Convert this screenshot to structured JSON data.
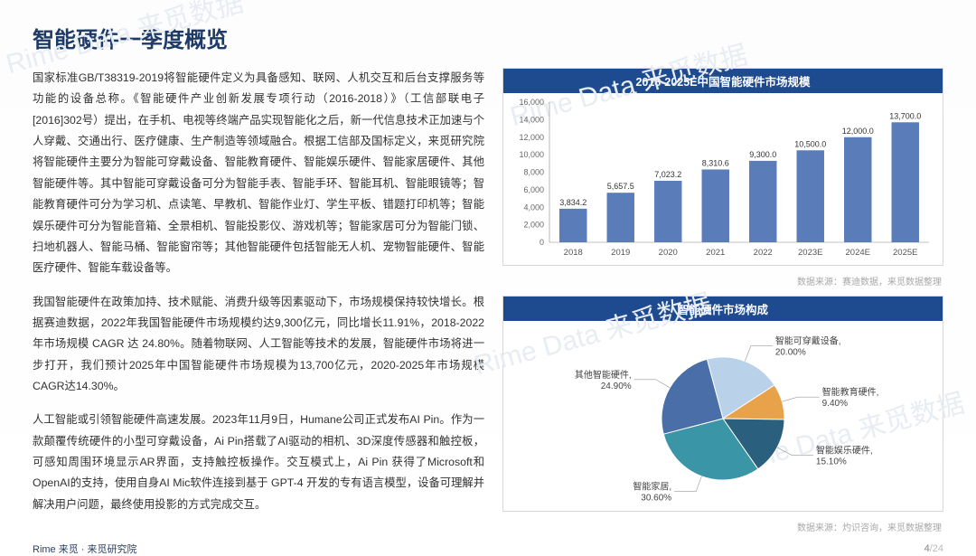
{
  "title": "智能硬件一季度概览",
  "paragraphs": {
    "p1": "国家标准GB/T38319-2019将智能硬件定义为具备感知、联网、人机交互和后台支撑服务等功能的设备总称。《智能硬件产业创新发展专项行动（2016-2018）》（工信部联电子[2016]302号）提出，在手机、电视等终端产品实现智能化之后，新一代信息技术正加速与个人穿戴、交通出行、医疗健康、生产制造等领域融合。根据工信部及国标定义，来觅研究院将智能硬件主要分为智能可穿戴设备、智能教育硬件、智能娱乐硬件、智能家居硬件、其他智能硬件等。其中智能可穿戴设备可分为智能手表、智能手环、智能耳机、智能眼镜等；智能教育硬件可分为学习机、点读笔、早教机、智能作业灯、学生平板、错题打印机等；智能娱乐硬件可分为智能音箱、全景相机、智能投影仪、游戏机等；智能家居可分为智能门锁、扫地机器人、智能马桶、智能窗帘等；其他智能硬件包括智能无人机、宠物智能硬件、智能医疗硬件、智能车载设备等。",
    "p2": "我国智能硬件在政策加持、技术赋能、消费升级等因素驱动下，市场规模保持较快增长。根据赛迪数据，2022年我国智能硬件市场规模约达9,300亿元，同比增长11.91%，2018-2022年市场规模 CAGR 达 24.80%。随着物联网、人工智能等技术的发展，智能硬件市场将进一步打开，我们预计2025年中国智能硬件市场规模为13,700亿元，2020-2025年市场规模CAGR达14.30%。",
    "p3": "人工智能或引领智能硬件高速发展。2023年11月9日，Humane公司正式发布AI Pin。作为一款颠覆传统硬件的小型可穿戴设备，Ai Pin搭载了AI驱动的相机、3D深度传感器和触控板，可感知周围环境显示AR界面，支持触控板操作。交互模式上，Ai Pin 获得了Microsoft和OpenAI的支持，使用自身AI Mic软件连接到基于 GPT-4 开发的专有语言模型，设备可理解并解决用户问题，最终使用投影的方式完成交互。"
  },
  "bar_chart": {
    "title": "2018-2025E中国智能硬件市场规模",
    "categories": [
      "2018",
      "2019",
      "2020",
      "2021",
      "2022",
      "2023E",
      "2024E",
      "2025E"
    ],
    "values": [
      3834.2,
      5657.5,
      7023.2,
      8310.6,
      9300.0,
      10500.0,
      12000.0,
      13700.0
    ],
    "value_labels": [
      "3,834.2",
      "5,657.5",
      "7,023.2",
      "8,310.6",
      "9,300.0",
      "10,500.0",
      "12,000.0",
      "13,700.0"
    ],
    "y_ticks": [
      0,
      2000,
      4000,
      6000,
      8000,
      10000,
      12000,
      14000,
      16000
    ],
    "y_tick_labels": [
      "0",
      "2,000",
      "4,000",
      "6,000",
      "8,000",
      "10,000",
      "12,000",
      "14,000",
      "16,000"
    ],
    "bar_color": "#5a7cb8",
    "ymax": 16000,
    "source": "数据来源：赛迪数据，来觅数据整理"
  },
  "pie_chart": {
    "title": "智能硬件市场构成",
    "slices": [
      {
        "label": "智能可穿戴设备,",
        "pct": "20.00%",
        "value": 20.0,
        "color": "#b9d2ea"
      },
      {
        "label": "智能教育硬件,",
        "pct": "9.40%",
        "value": 9.4,
        "color": "#e8a34a"
      },
      {
        "label": "智能娱乐硬件,",
        "pct": "15.10%",
        "value": 15.1,
        "color": "#2a5f7d"
      },
      {
        "label": "智能家居,",
        "pct": "30.60%",
        "value": 30.6,
        "color": "#3a95a6"
      },
      {
        "label": "其他智能硬件,",
        "pct": "24.90%",
        "value": 24.9,
        "color": "#4a6fa8"
      }
    ],
    "source": "数据来源：灼识咨询，来觅数据整理"
  },
  "footer": {
    "brand": "Rime 来觅 · 来觅研究院",
    "page": "4",
    "total": "/24"
  },
  "watermark": "Rime Data 来觅数据"
}
